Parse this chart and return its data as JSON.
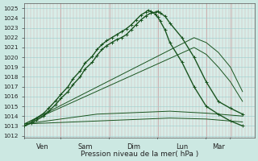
{
  "bg_color": "#cce8e2",
  "plot_bg": "#d8ede8",
  "grid_h_color": "#99cccc",
  "grid_v_color": "#ccaaaa",
  "line_color": "#1a5520",
  "ylabel": "Pression niveau de la mer( hPa )",
  "ylim": [
    1011.8,
    1025.5
  ],
  "yticks": [
    1012,
    1013,
    1014,
    1015,
    1016,
    1017,
    1018,
    1019,
    1020,
    1021,
    1022,
    1023,
    1024,
    1025
  ],
  "xlim": [
    0,
    9.5
  ],
  "day_lines": [
    1.5,
    3.5,
    5.5,
    7.5,
    8.5
  ],
  "xtick_positions": [
    0.75,
    2.5,
    4.5,
    6.5,
    8.0,
    9.0
  ],
  "xtick_labels": [
    "Ven",
    "Sam",
    "Dim",
    "Lun",
    "Mar",
    ""
  ],
  "lines": [
    {
      "x": [
        0.0,
        0.3,
        0.5,
        0.8,
        1.0,
        1.3,
        1.5,
        1.8,
        2.0,
        2.3,
        2.5,
        2.8,
        3.0,
        3.2,
        3.4,
        3.6,
        3.8,
        4.0,
        4.2,
        4.4,
        4.6,
        4.8,
        5.0,
        5.2,
        5.4,
        5.5,
        5.6,
        5.8,
        6.0,
        6.5,
        7.0,
        7.5,
        8.0,
        8.5,
        9.0
      ],
      "y": [
        1013.0,
        1013.3,
        1013.6,
        1014.0,
        1014.5,
        1015.2,
        1015.8,
        1016.5,
        1017.2,
        1018.0,
        1018.8,
        1019.5,
        1020.2,
        1020.8,
        1021.2,
        1021.5,
        1021.8,
        1022.0,
        1022.3,
        1022.8,
        1023.3,
        1023.8,
        1024.2,
        1024.5,
        1024.6,
        1024.7,
        1024.5,
        1024.2,
        1023.5,
        1022.0,
        1020.0,
        1017.5,
        1015.5,
        1014.8,
        1014.2
      ],
      "marker": "+",
      "lw": 1.0,
      "ms": 3.0
    },
    {
      "x": [
        0.0,
        0.3,
        0.5,
        0.8,
        1.0,
        1.3,
        1.5,
        1.8,
        2.0,
        2.3,
        2.5,
        2.8,
        3.0,
        3.2,
        3.4,
        3.6,
        3.8,
        4.0,
        4.2,
        4.4,
        4.6,
        4.8,
        5.0,
        5.1,
        5.2,
        5.4,
        5.5,
        5.6,
        5.8,
        6.0,
        6.5,
        7.0,
        7.5,
        8.0,
        8.5,
        9.0
      ],
      "y": [
        1013.0,
        1013.4,
        1013.8,
        1014.3,
        1014.8,
        1015.6,
        1016.2,
        1017.0,
        1017.8,
        1018.6,
        1019.4,
        1020.1,
        1020.8,
        1021.3,
        1021.7,
        1022.0,
        1022.3,
        1022.6,
        1022.9,
        1023.3,
        1023.8,
        1024.3,
        1024.6,
        1024.8,
        1024.7,
        1024.4,
        1024.1,
        1023.7,
        1022.8,
        1021.5,
        1019.5,
        1017.0,
        1015.0,
        1014.2,
        1013.5,
        1013.0
      ],
      "marker": "+",
      "lw": 1.0,
      "ms": 3.0
    },
    {
      "x": [
        0.0,
        7.0,
        7.5,
        8.0,
        8.5,
        9.0
      ],
      "y": [
        1013.2,
        1022.0,
        1021.5,
        1020.5,
        1019.0,
        1016.5
      ],
      "marker": null,
      "lw": 0.7,
      "ms": 0
    },
    {
      "x": [
        0.0,
        7.0,
        7.5,
        8.0,
        8.5,
        9.0
      ],
      "y": [
        1013.2,
        1021.0,
        1020.3,
        1019.0,
        1017.5,
        1015.5
      ],
      "marker": null,
      "lw": 0.7,
      "ms": 0
    },
    {
      "x": [
        0.0,
        3.0,
        6.0,
        7.5,
        9.0
      ],
      "y": [
        1013.2,
        1014.2,
        1014.5,
        1014.3,
        1014.0
      ],
      "marker": null,
      "lw": 0.7,
      "ms": 0
    },
    {
      "x": [
        0.0,
        3.0,
        6.0,
        7.5,
        9.0
      ],
      "y": [
        1013.2,
        1013.5,
        1013.8,
        1013.7,
        1013.4
      ],
      "marker": null,
      "lw": 0.7,
      "ms": 0
    }
  ]
}
